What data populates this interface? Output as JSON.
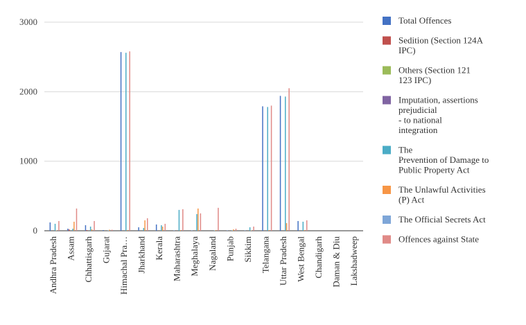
{
  "chart_data": {
    "type": "bar",
    "categories": [
      "Andhra Pradesh",
      "Assam",
      "Chhattisgarh",
      "Gujarat",
      "Himachal Pra…",
      "Jharkhand",
      "Kerala",
      "Maharashtra",
      "Meghalaya",
      "Nagaland",
      "Punjab",
      "Sikkim",
      "Telangana",
      "Uttar Pradesh",
      "West Bengal",
      "Chandigarh",
      "Daman & Diu",
      "Lakshadweep"
    ],
    "ylim": [
      0,
      3000
    ],
    "yticks": [
      "0",
      "1000",
      "2000",
      "3000"
    ],
    "grid": true,
    "legend_position": "right",
    "series": [
      {
        "name": "Total Offences",
        "color": "#4472c4",
        "values": [
          120,
          30,
          80,
          10,
          2570,
          50,
          90,
          5,
          5,
          0,
          5,
          5,
          1790,
          1940,
          140,
          0,
          0,
          0
        ]
      },
      {
        "name": "Sedition (Section 124A\nIPC)",
        "color": "#c0504d",
        "values": [
          0,
          20,
          10,
          0,
          0,
          0,
          0,
          0,
          0,
          0,
          0,
          0,
          0,
          0,
          0,
          0,
          0,
          0
        ]
      },
      {
        "name": "Others (Section 121\n123 IPC)",
        "color": "#9bbb59",
        "values": [
          0,
          0,
          0,
          0,
          0,
          0,
          0,
          0,
          0,
          0,
          0,
          0,
          0,
          0,
          0,
          0,
          0,
          0
        ]
      },
      {
        "name": "Imputation, assertions\nprejudicial\n- to national\nintegration",
        "color": "#8064a2",
        "values": [
          0,
          0,
          0,
          0,
          0,
          0,
          0,
          0,
          0,
          0,
          0,
          0,
          0,
          0,
          0,
          0,
          0,
          0
        ]
      },
      {
        "name": "The\nPrevention of Damage to\nPublic Property Act",
        "color": "#4bacc6",
        "values": [
          100,
          30,
          60,
          5,
          2560,
          40,
          80,
          300,
          240,
          5,
          5,
          50,
          1780,
          1930,
          130,
          0,
          0,
          0
        ]
      },
      {
        "name": "The Unlawful Activities\n(P) Act",
        "color": "#f79646",
        "values": [
          5,
          130,
          20,
          15,
          10,
          150,
          60,
          10,
          320,
          10,
          20,
          5,
          10,
          110,
          10,
          0,
          0,
          0
        ]
      },
      {
        "name": "The Official Secrets Act",
        "color": "#7ea6d8",
        "values": [
          0,
          0,
          0,
          0,
          0,
          0,
          0,
          0,
          0,
          0,
          0,
          0,
          0,
          0,
          0,
          0,
          0,
          0
        ]
      },
      {
        "name": "Offences against State",
        "color": "#e08a87",
        "values": [
          140,
          320,
          140,
          15,
          2580,
          180,
          100,
          310,
          250,
          330,
          30,
          60,
          1800,
          2050,
          150,
          0,
          0,
          0
        ]
      }
    ]
  }
}
